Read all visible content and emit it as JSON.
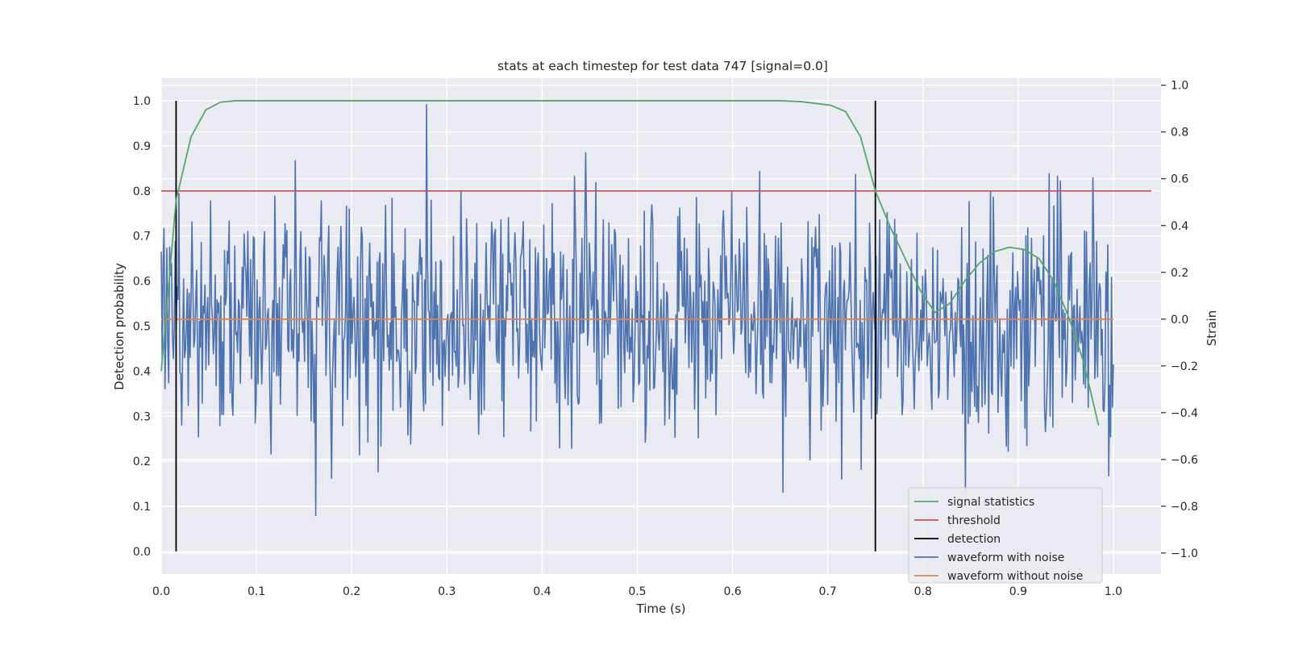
{
  "chart_data": {
    "type": "line",
    "title": "stats at each timestep for test data 747 [signal=0.0]",
    "xlabel": "Time (s)",
    "ylabel": "Detection probability",
    "y2label": "Strain",
    "xlim": [
      0.0,
      1.05
    ],
    "ylim": [
      -0.05,
      1.05
    ],
    "y2lim": [
      -1.09,
      1.03
    ],
    "xticks": [
      "0.0",
      "0.1",
      "0.2",
      "0.3",
      "0.4",
      "0.5",
      "0.6",
      "0.7",
      "0.8",
      "0.9",
      "1.0"
    ],
    "xtick_values": [
      0.0,
      0.1,
      0.2,
      0.3,
      0.4,
      0.5,
      0.6,
      0.7,
      0.8,
      0.9,
      1.0
    ],
    "yticks": [
      "0.0",
      "0.1",
      "0.2",
      "0.3",
      "0.4",
      "0.5",
      "0.6",
      "0.7",
      "0.8",
      "0.9",
      "1.0"
    ],
    "ytick_values": [
      0.0,
      0.1,
      0.2,
      0.3,
      0.4,
      0.5,
      0.6,
      0.7,
      0.8,
      0.9,
      1.0
    ],
    "y2ticks": [
      "−1.0",
      "−0.8",
      "−0.6",
      "−0.4",
      "−0.2",
      "0.0",
      "0.2",
      "0.4",
      "0.6",
      "0.8",
      "1.0"
    ],
    "y2tick_values": [
      -1.0,
      -0.8,
      -0.6,
      -0.4,
      -0.2,
      0.0,
      0.2,
      0.4,
      0.6,
      0.8,
      1.0
    ],
    "grid": true,
    "legend_position": "lower-right",
    "colors": {
      "signal_statistics": "#55a868",
      "threshold": "#c44e52",
      "detection": "#000000",
      "waveform_with_noise": "#4c72b0",
      "waveform_without_noise": "#dd8452",
      "background": "#eaeaf2",
      "grid": "#ffffff"
    },
    "series": [
      {
        "name": "signal statistics",
        "axis": "left",
        "x": [
          0.0,
          0.0156,
          0.0313,
          0.0469,
          0.0625,
          0.0781,
          0.0938,
          0.1094,
          0.2,
          0.4,
          0.6,
          0.65,
          0.6719,
          0.6875,
          0.7031,
          0.7188,
          0.7344,
          0.75,
          0.7656,
          0.7813,
          0.7969,
          0.8125,
          0.8281,
          0.8438,
          0.8594,
          0.875,
          0.8906,
          0.9063,
          0.9219,
          0.9375,
          0.9531,
          0.9688,
          0.9844
        ],
        "values": [
          0.4,
          0.78,
          0.92,
          0.98,
          0.997,
          1.0,
          1.0,
          1.0,
          1.0,
          1.0,
          1.0,
          1.0,
          0.998,
          0.994,
          0.99,
          0.976,
          0.92,
          0.8,
          0.72,
          0.65,
          0.58,
          0.53,
          0.55,
          0.6,
          0.64,
          0.665,
          0.675,
          0.67,
          0.65,
          0.6,
          0.52,
          0.42,
          0.28
        ]
      },
      {
        "name": "threshold",
        "axis": "left",
        "x": [
          0.0,
          1.04
        ],
        "values": [
          0.8,
          0.8
        ]
      },
      {
        "name": "detection",
        "axis": "left",
        "x_positions": [
          0.0156,
          0.75
        ],
        "values": [
          0.0,
          1.0
        ]
      },
      {
        "name": "waveform with noise",
        "axis": "right",
        "x_range": [
          0.0,
          1.0
        ],
        "samples": 1024,
        "seed": 747,
        "std": 0.26,
        "range": [
          -0.84,
          1.0
        ]
      },
      {
        "name": "waveform without noise",
        "axis": "right",
        "x": [
          0.0,
          1.0
        ],
        "values": [
          0.0,
          0.0
        ]
      }
    ],
    "legend": [
      "signal statistics",
      "threshold",
      "detection",
      "waveform with noise",
      "waveform without noise"
    ]
  }
}
